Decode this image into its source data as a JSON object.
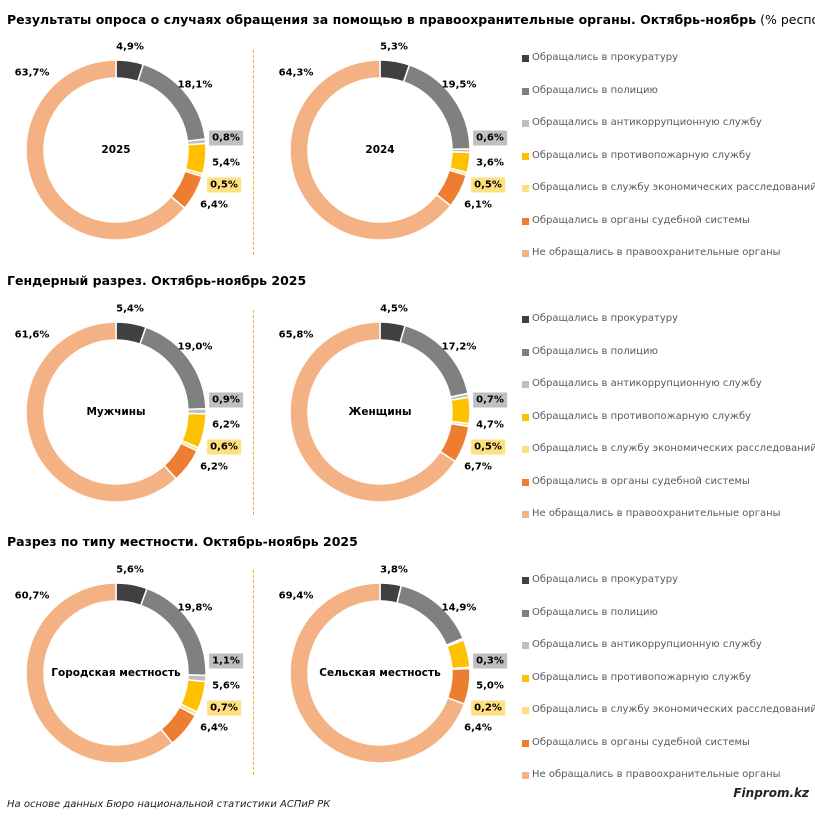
{
  "colors": [
    "#404040",
    "#808080",
    "#bfbfbf",
    "#ffc000",
    "#ffdf7f",
    "#ed7d31",
    "#f4b183"
  ],
  "label_highlight": {
    "2": "#bfbfbf",
    "4": "#ffdf7f"
  },
  "categories": [
    "Обращались в прокуратуру",
    "Обращались в полицию",
    "Обращались в антикоррупционную службу",
    "Обращались в противопожарную службу",
    "Обращались в службу экономических расследований",
    "Обращались в органы судебной системы",
    "Не обращались в правоохранительные органы"
  ],
  "sections": [
    {
      "title": "Результаты опроса о случаях обращения за помощью в правоохранительные органы. Октябрь-ноябрь",
      "title_suffix": "(% респондентов)"
    },
    {
      "title": "Гендерный разрез. Октябрь-ноябрь 2025",
      "title_suffix": ""
    },
    {
      "title": "Разрез по типу местности. Октябрь-ноябрь 2025",
      "title_suffix": ""
    }
  ],
  "chart_data": [
    {
      "type": "pie",
      "subtype": "donut",
      "section": 0,
      "center_label": "2025",
      "values": [
        4.9,
        18.1,
        0.8,
        5.4,
        0.5,
        6.4,
        63.7
      ],
      "labels": [
        "4,9%",
        "18,1%",
        "0,8%",
        "5,4%",
        "0,5%",
        "6,4%",
        "63,7%"
      ]
    },
    {
      "type": "pie",
      "subtype": "donut",
      "section": 0,
      "center_label": "2024",
      "values": [
        5.3,
        19.5,
        0.6,
        3.6,
        0.5,
        6.1,
        64.3
      ],
      "labels": [
        "5,3%",
        "19,5%",
        "0,6%",
        "3,6%",
        "0,5%",
        "6,1%",
        "64,3%"
      ]
    },
    {
      "type": "pie",
      "subtype": "donut",
      "section": 1,
      "center_label": "Мужчины",
      "values": [
        5.4,
        19.0,
        0.9,
        6.2,
        0.6,
        6.2,
        61.6
      ],
      "labels": [
        "5,4%",
        "19,0%",
        "0,9%",
        "6,2%",
        "0,6%",
        "6,2%",
        "61,6%"
      ]
    },
    {
      "type": "pie",
      "subtype": "donut",
      "section": 1,
      "center_label": "Женщины",
      "values": [
        4.5,
        17.2,
        0.7,
        4.7,
        0.5,
        6.7,
        65.8
      ],
      "labels": [
        "4,5%",
        "17,2%",
        "0,7%",
        "4,7%",
        "0,5%",
        "6,7%",
        "65,8%"
      ]
    },
    {
      "type": "pie",
      "subtype": "donut",
      "section": 2,
      "center_label": "Городская местность",
      "values": [
        5.6,
        19.8,
        1.1,
        5.6,
        0.7,
        6.4,
        60.7
      ],
      "labels": [
        "5,6%",
        "19,8%",
        "1,1%",
        "5,6%",
        "0,7%",
        "6,4%",
        "60,7%"
      ]
    },
    {
      "type": "pie",
      "subtype": "donut",
      "section": 2,
      "center_label": "Сельская местность",
      "values": [
        3.8,
        14.9,
        0.3,
        5.0,
        0.2,
        6.4,
        69.4
      ],
      "labels": [
        "3,8%",
        "14,9%",
        "0,3%",
        "5,0%",
        "0,2%",
        "6,4%",
        "69,4%"
      ]
    }
  ],
  "footer": {
    "source": "На основе данных Бюро национальной статистики АСПиР РК",
    "brand": "Finprom.kz"
  }
}
